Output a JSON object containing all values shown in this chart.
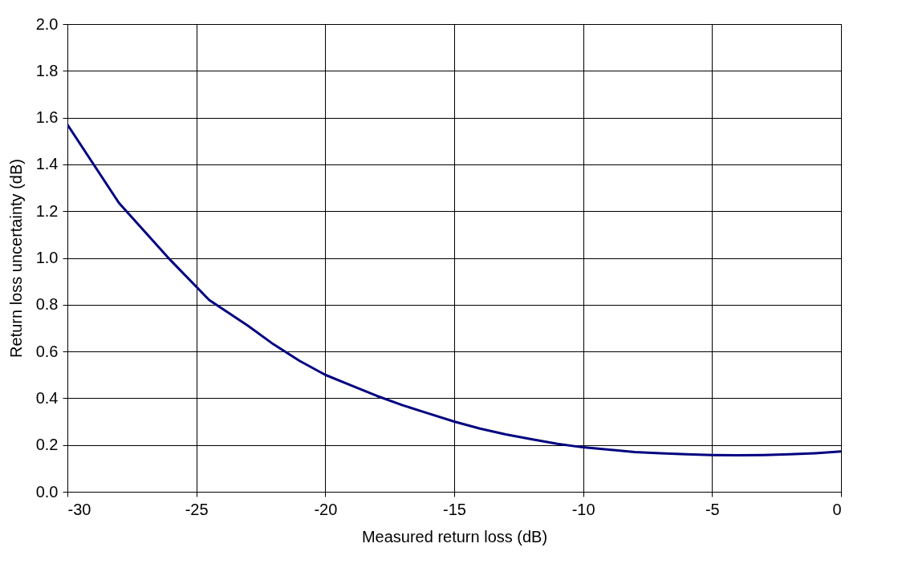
{
  "chart_data": {
    "type": "line",
    "xlabel": "Measured return loss (dB)",
    "ylabel": "Return loss uncertainty (dB)",
    "x": [
      -30,
      -28,
      -26,
      -24.5,
      -23,
      -22,
      -21,
      -20,
      -19,
      -18,
      -17,
      -16,
      -15,
      -14,
      -13,
      -12,
      -11,
      -10,
      -9,
      -8,
      -7,
      -6,
      -5,
      -4,
      -3,
      -2,
      -1,
      0
    ],
    "series": [
      {
        "color": "#000080",
        "values": [
          1.57,
          1.235,
          0.99,
          0.82,
          0.71,
          0.63,
          0.56,
          0.5,
          0.455,
          0.41,
          0.37,
          0.335,
          0.3,
          0.27,
          0.245,
          0.225,
          0.205,
          0.19,
          0.18,
          0.17,
          0.165,
          0.16,
          0.157,
          0.156,
          0.157,
          0.16,
          0.165,
          0.172
        ]
      }
    ],
    "xlim": [
      -30,
      0
    ],
    "xticks": [
      -30,
      -25,
      -20,
      -15,
      -10,
      -5,
      0
    ],
    "ylim": [
      0,
      2
    ],
    "yticks": [
      {
        "value": 0,
        "label": "0.0"
      },
      {
        "value": 0.2,
        "label": "0.2"
      },
      {
        "value": 0.4,
        "label": "0.4"
      },
      {
        "value": 0.6,
        "label": "0.6"
      },
      {
        "value": 0.8,
        "label": "0.8"
      },
      {
        "value": 1,
        "label": "1.0"
      },
      {
        "value": 1.2,
        "label": "1.2"
      },
      {
        "value": 1.4,
        "label": "1.4"
      },
      {
        "value": 1.6,
        "label": "1.6"
      },
      {
        "value": 1.8,
        "label": "1.8"
      },
      {
        "value": 2,
        "label": "2.0"
      }
    ],
    "grid": true,
    "marker": "none",
    "line_style": "solid"
  }
}
